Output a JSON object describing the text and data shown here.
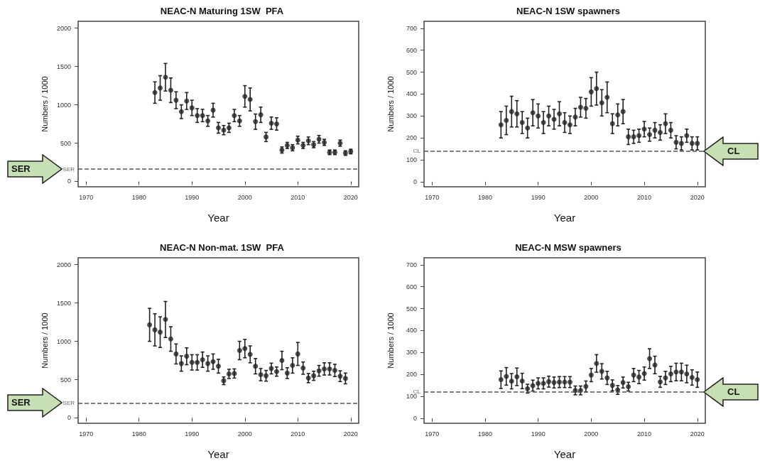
{
  "chart_data": [
    {
      "type": "scatter",
      "title": "NEAC-N Maturing 1SW  PFA",
      "xlabel": "Year",
      "ylabel": "Numbers / 1000",
      "marker": "circle",
      "color": "#222222",
      "xlim": [
        1968.5,
        2021.5
      ],
      "xticks": [
        1970,
        1980,
        1990,
        2000,
        2010,
        2020
      ],
      "ylim": [
        -70,
        2090
      ],
      "yticks": [
        0,
        500,
        1000,
        1500,
        2000
      ],
      "x": [
        1983,
        1984,
        1985,
        1986,
        1987,
        1988,
        1989,
        1990,
        1991,
        1992,
        1993,
        1994,
        1995,
        1996,
        1997,
        1998,
        1999,
        2000,
        2001,
        2002,
        2003,
        2004,
        2005,
        2006,
        2007,
        2008,
        2009,
        2010,
        2011,
        2012,
        2013,
        2014,
        2015,
        2016,
        2017,
        2018,
        2019,
        2020
      ],
      "values": [
        1160,
        1220,
        1360,
        1190,
        1060,
        910,
        1050,
        960,
        860,
        860,
        790,
        930,
        700,
        670,
        700,
        860,
        790,
        1110,
        1070,
        780,
        870,
        580,
        760,
        750,
        410,
        470,
        440,
        540,
        470,
        530,
        480,
        550,
        510,
        380,
        380,
        500,
        370,
        390
      ],
      "errors": [
        140,
        160,
        180,
        160,
        110,
        90,
        110,
        100,
        90,
        80,
        70,
        90,
        70,
        60,
        60,
        80,
        70,
        140,
        150,
        100,
        100,
        60,
        80,
        80,
        40,
        40,
        40,
        50,
        40,
        50,
        40,
        50,
        40,
        30,
        30,
        40,
        30,
        30
      ],
      "ref_lines": [
        {
          "axis": "y",
          "value": 160,
          "label": "SER",
          "line_style": "dashed",
          "color": "#555555"
        }
      ],
      "annotations": [
        "SER"
      ]
    },
    {
      "type": "scatter",
      "title": "NEAC-N 1SW spawners",
      "xlabel": "Year",
      "ylabel": "Numbers / 1000",
      "marker": "circle",
      "color": "#222222",
      "xlim": [
        1968.5,
        2021.5
      ],
      "xticks": [
        1970,
        1980,
        1990,
        2000,
        2010,
        2020
      ],
      "ylim": [
        -23,
        732
      ],
      "yticks": [
        0,
        100,
        200,
        300,
        400,
        500,
        600,
        700
      ],
      "x": [
        1983,
        1984,
        1985,
        1986,
        1987,
        1988,
        1989,
        1990,
        1991,
        1992,
        1993,
        1994,
        1995,
        1996,
        1997,
        1998,
        1999,
        2000,
        2001,
        2002,
        2003,
        2004,
        2005,
        2006,
        2007,
        2008,
        2009,
        2010,
        2011,
        2012,
        2013,
        2014,
        2015,
        2016,
        2017,
        2018,
        2019,
        2020
      ],
      "values": [
        260,
        280,
        320,
        310,
        270,
        245,
        315,
        300,
        270,
        300,
        285,
        310,
        270,
        260,
        295,
        340,
        335,
        410,
        425,
        360,
        385,
        265,
        305,
        320,
        205,
        205,
        210,
        240,
        215,
        235,
        225,
        265,
        235,
        180,
        175,
        210,
        175,
        175
      ],
      "errors": [
        60,
        65,
        70,
        60,
        50,
        45,
        60,
        55,
        50,
        45,
        45,
        55,
        45,
        40,
        40,
        45,
        45,
        65,
        75,
        60,
        70,
        45,
        50,
        55,
        35,
        30,
        30,
        35,
        30,
        35,
        35,
        45,
        35,
        30,
        30,
        30,
        30,
        30
      ],
      "ref_lines": [
        {
          "axis": "y",
          "value": 140,
          "label": "CL",
          "line_style": "dashed",
          "color": "#555555"
        }
      ],
      "annotations": [
        "CL"
      ]
    },
    {
      "type": "scatter",
      "title": "NEAC-N Non-mat. 1SW  PFA",
      "xlabel": "Year",
      "ylabel": "Numbers / 1000",
      "marker": "circle",
      "color": "#222222",
      "xlim": [
        1968.5,
        2021.5
      ],
      "xticks": [
        1970,
        1980,
        1990,
        2000,
        2010,
        2020
      ],
      "ylim": [
        -70,
        2090
      ],
      "yticks": [
        0,
        500,
        1000,
        1500,
        2000
      ],
      "x": [
        1982,
        1983,
        1984,
        1985,
        1986,
        1987,
        1988,
        1989,
        1990,
        1991,
        1992,
        1993,
        1994,
        1995,
        1996,
        1997,
        1998,
        1999,
        2000,
        2001,
        2002,
        2003,
        2004,
        2005,
        2006,
        2007,
        2008,
        2009,
        2010,
        2011,
        2012,
        2013,
        2014,
        2015,
        2016,
        2017,
        2018,
        2019
      ],
      "values": [
        1215,
        1150,
        1120,
        1285,
        1030,
        835,
        710,
        805,
        725,
        725,
        760,
        710,
        735,
        675,
        485,
        575,
        580,
        880,
        905,
        830,
        675,
        565,
        550,
        645,
        605,
        750,
        585,
        685,
        835,
        650,
        520,
        550,
        615,
        640,
        640,
        620,
        545,
        515
      ],
      "errors": [
        215,
        210,
        200,
        235,
        160,
        130,
        100,
        110,
        100,
        100,
        100,
        100,
        100,
        90,
        50,
        60,
        60,
        120,
        120,
        110,
        100,
        80,
        70,
        70,
        60,
        120,
        70,
        100,
        150,
        80,
        60,
        60,
        70,
        80,
        80,
        80,
        70,
        70
      ],
      "ref_lines": [
        {
          "axis": "y",
          "value": 195,
          "label": "SER",
          "line_style": "dashed",
          "color": "#555555"
        }
      ],
      "annotations": [
        "SER"
      ]
    },
    {
      "type": "scatter",
      "title": "NEAC-N MSW spawners",
      "xlabel": "Year",
      "ylabel": "Numbers / 1000",
      "marker": "circle",
      "color": "#222222",
      "xlim": [
        1968.5,
        2021.5
      ],
      "xticks": [
        1970,
        1980,
        1990,
        2000,
        2010,
        2020
      ],
      "ylim": [
        -23,
        732
      ],
      "yticks": [
        0,
        100,
        200,
        300,
        400,
        500,
        600,
        700
      ],
      "x": [
        1983,
        1984,
        1985,
        1986,
        1987,
        1988,
        1989,
        1990,
        1991,
        1992,
        1993,
        1994,
        1995,
        1996,
        1997,
        1998,
        1999,
        2000,
        2001,
        2002,
        2003,
        2004,
        2005,
        2006,
        2007,
        2008,
        2009,
        2010,
        2011,
        2012,
        2013,
        2014,
        2015,
        2016,
        2017,
        2018,
        2019,
        2020
      ],
      "values": [
        176,
        191,
        169,
        189,
        170,
        135,
        149,
        159,
        159,
        167,
        163,
        165,
        165,
        165,
        127,
        127,
        145,
        197,
        250,
        214,
        184,
        150,
        129,
        163,
        144,
        197,
        188,
        204,
        272,
        243,
        166,
        184,
        202,
        211,
        211,
        202,
        186,
        176
      ],
      "errors": [
        40,
        40,
        35,
        40,
        35,
        20,
        25,
        25,
        25,
        25,
        25,
        25,
        25,
        25,
        20,
        20,
        25,
        30,
        40,
        35,
        30,
        25,
        20,
        25,
        20,
        30,
        30,
        30,
        45,
        40,
        25,
        30,
        35,
        40,
        40,
        40,
        35,
        35
      ],
      "ref_lines": [
        {
          "axis": "y",
          "value": 120,
          "label": "CL",
          "line_style": "dashed",
          "color": "#555555"
        }
      ],
      "annotations": [
        "CL"
      ]
    }
  ]
}
